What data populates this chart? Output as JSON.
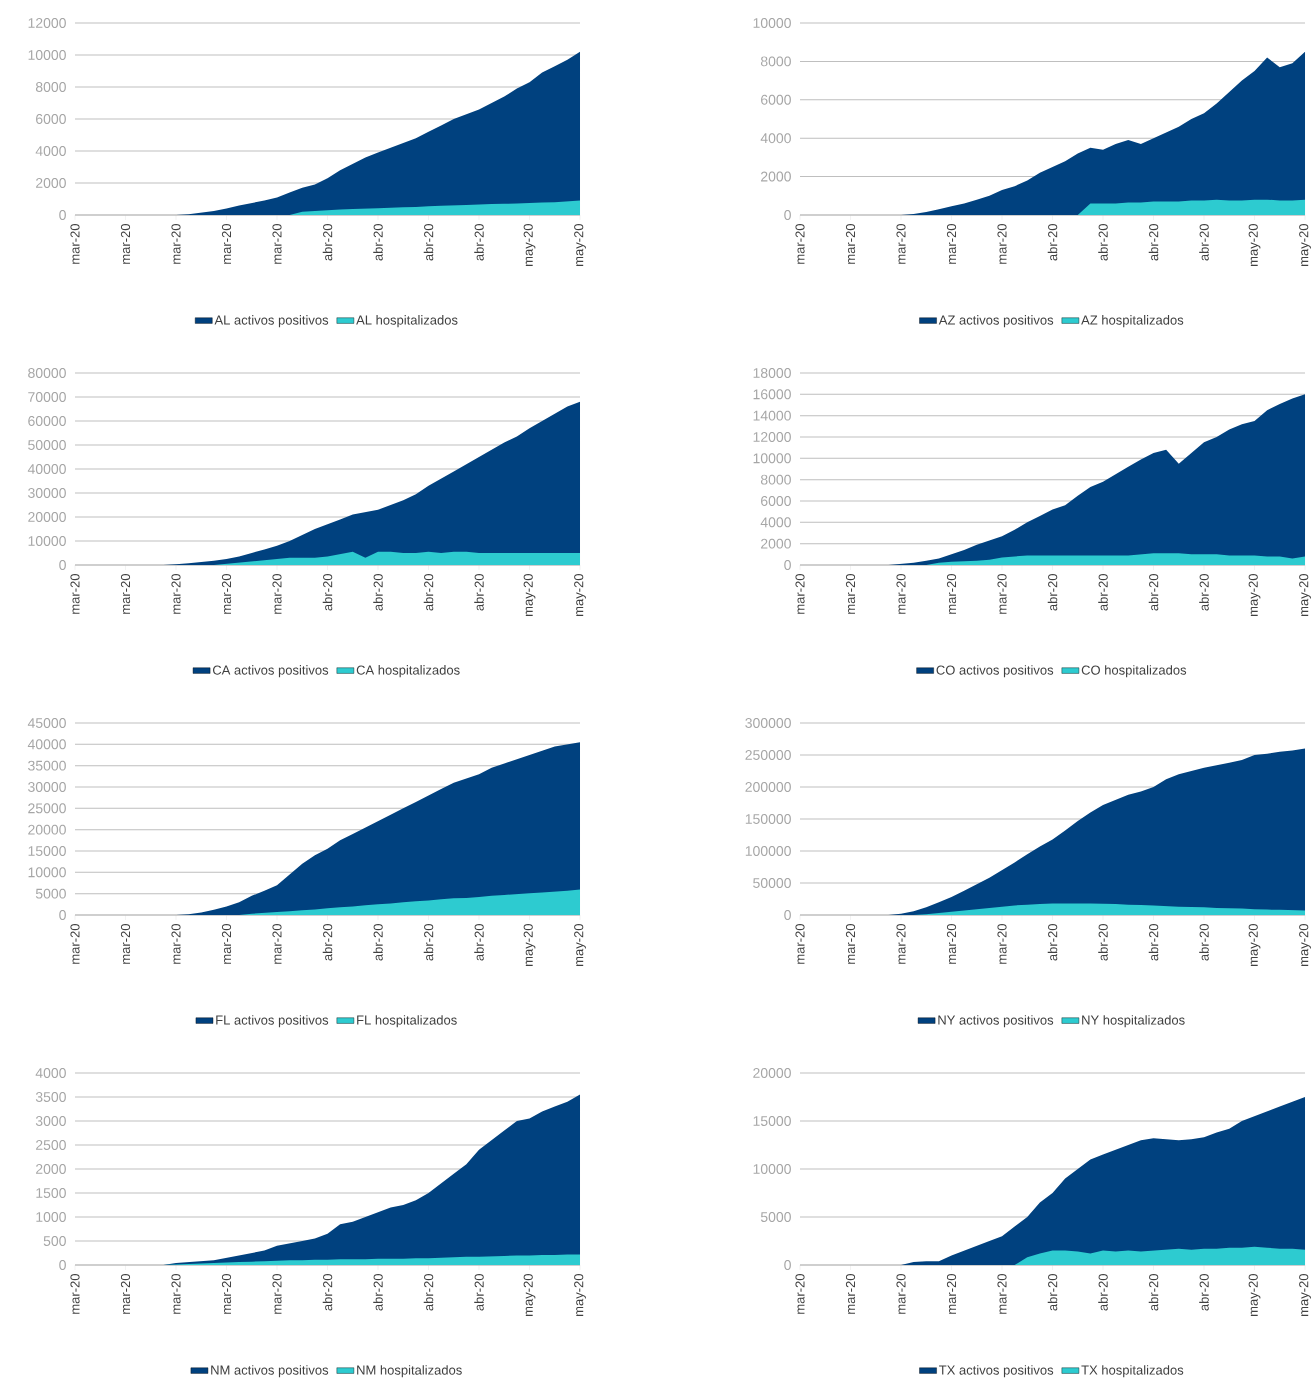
{
  "chart_data": [
    {
      "type": "area",
      "categories": [
        "mar-20",
        null,
        null,
        null,
        "mar-20",
        null,
        null,
        null,
        "mar-20",
        null,
        null,
        null,
        "mar-20",
        null,
        null,
        null,
        "mar-20",
        null,
        null,
        null,
        "abr-20",
        null,
        null,
        null,
        "abr-20",
        null,
        null,
        null,
        "abr-20",
        null,
        null,
        null,
        "abr-20",
        null,
        null,
        null,
        "may-20",
        null,
        null,
        null,
        "may-20"
      ],
      "ylim": [
        0,
        12000
      ],
      "yticks": [
        0,
        2000,
        4000,
        6000,
        8000,
        10000,
        12000
      ],
      "grid": "y",
      "legend": "bottom",
      "series": [
        {
          "name": "AL activos positivos",
          "color": "#00417f",
          "values": [
            0,
            0,
            0,
            0,
            0,
            0,
            0,
            0,
            0,
            50,
            150,
            250,
            400,
            600,
            750,
            900,
            1100,
            1400,
            1700,
            1900,
            2300,
            2800,
            3200,
            3600,
            3900,
            4200,
            4500,
            4800,
            5200,
            5600,
            6000,
            6300,
            6600,
            7000,
            7400,
            7900,
            8300,
            8900,
            9300,
            9700,
            10200
          ]
        },
        {
          "name": "AL hospitalizados",
          "color": "#2dcbd0",
          "values": [
            0,
            0,
            0,
            0,
            0,
            0,
            0,
            0,
            0,
            0,
            0,
            0,
            0,
            0,
            0,
            0,
            0,
            0,
            200,
            250,
            300,
            350,
            380,
            400,
            420,
            450,
            480,
            500,
            550,
            580,
            600,
            620,
            650,
            680,
            700,
            720,
            750,
            780,
            800,
            850,
            900
          ]
        }
      ]
    },
    {
      "type": "area",
      "categories": [
        "mar-20",
        null,
        null,
        null,
        "mar-20",
        null,
        null,
        null,
        "mar-20",
        null,
        null,
        null,
        "mar-20",
        null,
        null,
        null,
        "mar-20",
        null,
        null,
        null,
        "abr-20",
        null,
        null,
        null,
        "abr-20",
        null,
        null,
        null,
        "abr-20",
        null,
        null,
        null,
        "abr-20",
        null,
        null,
        null,
        "may-20",
        null,
        null,
        null,
        "may-20"
      ],
      "ylim": [
        0,
        10000
      ],
      "yticks": [
        0,
        2000,
        4000,
        6000,
        8000,
        10000
      ],
      "grid": "y",
      "legend": "bottom",
      "series": [
        {
          "name": "AZ activos positivos",
          "color": "#00417f",
          "values": [
            0,
            0,
            0,
            0,
            0,
            0,
            0,
            0,
            0,
            50,
            150,
            300,
            450,
            600,
            800,
            1000,
            1300,
            1500,
            1800,
            2200,
            2500,
            2800,
            3200,
            3500,
            3400,
            3700,
            3900,
            3700,
            4000,
            4300,
            4600,
            5000,
            5300,
            5800,
            6400,
            7000,
            7500,
            8200,
            7700,
            7900,
            8500
          ]
        },
        {
          "name": "AZ hospitalizados",
          "color": "#2dcbd0",
          "values": [
            0,
            0,
            0,
            0,
            0,
            0,
            0,
            0,
            0,
            0,
            0,
            0,
            0,
            0,
            0,
            0,
            0,
            0,
            0,
            0,
            0,
            0,
            0,
            600,
            600,
            600,
            650,
            650,
            700,
            700,
            700,
            750,
            750,
            800,
            750,
            750,
            800,
            800,
            750,
            750,
            800
          ]
        }
      ]
    },
    {
      "type": "area",
      "categories": [
        "mar-20",
        null,
        null,
        null,
        "mar-20",
        null,
        null,
        null,
        "mar-20",
        null,
        null,
        null,
        "mar-20",
        null,
        null,
        null,
        "mar-20",
        null,
        null,
        null,
        "abr-20",
        null,
        null,
        null,
        "abr-20",
        null,
        null,
        null,
        "abr-20",
        null,
        null,
        null,
        "abr-20",
        null,
        null,
        null,
        "may-20",
        null,
        null,
        null,
        "may-20"
      ],
      "ylim": [
        0,
        80000
      ],
      "yticks": [
        0,
        10000,
        20000,
        30000,
        40000,
        50000,
        60000,
        70000,
        80000
      ],
      "grid": "y",
      "legend": "bottom",
      "series": [
        {
          "name": "CA activos positivos",
          "color": "#00417f",
          "values": [
            0,
            0,
            0,
            0,
            0,
            0,
            0,
            0,
            300,
            700,
            1200,
            1800,
            2500,
            3500,
            5000,
            6500,
            8000,
            10000,
            12500,
            15000,
            17000,
            19000,
            21000,
            22000,
            23000,
            25000,
            27000,
            29500,
            33000,
            36000,
            39000,
            42000,
            45000,
            48000,
            51000,
            53500,
            57000,
            60000,
            63000,
            66000,
            68000
          ]
        },
        {
          "name": "CA hospitalizados",
          "color": "#2dcbd0",
          "values": [
            0,
            0,
            0,
            0,
            0,
            0,
            0,
            0,
            0,
            0,
            0,
            0,
            500,
            1000,
            1500,
            2000,
            2500,
            3000,
            3000,
            3000,
            3500,
            4500,
            5500,
            3000,
            5500,
            5500,
            5000,
            5000,
            5500,
            5000,
            5500,
            5500,
            5000,
            5000,
            5000,
            5000,
            5000,
            5000,
            5000,
            5000,
            5000
          ]
        }
      ]
    },
    {
      "type": "area",
      "categories": [
        "mar-20",
        null,
        null,
        null,
        "mar-20",
        null,
        null,
        null,
        "mar-20",
        null,
        null,
        null,
        "mar-20",
        null,
        null,
        null,
        "mar-20",
        null,
        null,
        null,
        "abr-20",
        null,
        null,
        null,
        "abr-20",
        null,
        null,
        null,
        "abr-20",
        null,
        null,
        null,
        "abr-20",
        null,
        null,
        null,
        "may-20",
        null,
        null,
        null,
        "may-20"
      ],
      "ylim": [
        0,
        18000
      ],
      "yticks": [
        0,
        2000,
        4000,
        6000,
        8000,
        10000,
        12000,
        14000,
        16000,
        18000
      ],
      "grid": "y",
      "legend": "bottom",
      "series": [
        {
          "name": "CO activos positivos",
          "color": "#00417f",
          "values": [
            0,
            0,
            0,
            0,
            0,
            0,
            0,
            0,
            100,
            200,
            400,
            600,
            1000,
            1400,
            1900,
            2300,
            2700,
            3300,
            4000,
            4600,
            5200,
            5600,
            6500,
            7300,
            7800,
            8500,
            9200,
            9900,
            10500,
            10800,
            9500,
            10500,
            11500,
            12000,
            12700,
            13200,
            13500,
            14500,
            15100,
            15600,
            16000
          ]
        },
        {
          "name": "CO hospitalizados",
          "color": "#2dcbd0",
          "values": [
            0,
            0,
            0,
            0,
            0,
            0,
            0,
            0,
            0,
            0,
            0,
            200,
            300,
            350,
            400,
            500,
            700,
            800,
            900,
            900,
            900,
            900,
            900,
            900,
            900,
            900,
            900,
            1000,
            1100,
            1100,
            1100,
            1000,
            1000,
            1000,
            900,
            900,
            900,
            800,
            800,
            600,
            800
          ]
        }
      ]
    },
    {
      "type": "area",
      "categories": [
        "mar-20",
        null,
        null,
        null,
        "mar-20",
        null,
        null,
        null,
        "mar-20",
        null,
        null,
        null,
        "mar-20",
        null,
        null,
        null,
        "mar-20",
        null,
        null,
        null,
        "abr-20",
        null,
        null,
        null,
        "abr-20",
        null,
        null,
        null,
        "abr-20",
        null,
        null,
        null,
        "abr-20",
        null,
        null,
        null,
        "may-20",
        null,
        null,
        null,
        "may-20"
      ],
      "ylim": [
        0,
        45000
      ],
      "yticks": [
        0,
        5000,
        10000,
        15000,
        20000,
        25000,
        30000,
        35000,
        40000,
        45000
      ],
      "grid": "y",
      "legend": "bottom",
      "series": [
        {
          "name": "FL activos positivos",
          "color": "#00417f",
          "values": [
            0,
            0,
            0,
            0,
            0,
            0,
            0,
            0,
            0,
            200,
            600,
            1200,
            2000,
            3000,
            4500,
            5700,
            7000,
            9500,
            12000,
            14000,
            15500,
            17500,
            19000,
            20500,
            22000,
            23500,
            25000,
            26500,
            28000,
            29500,
            31000,
            32000,
            33000,
            34500,
            35500,
            36500,
            37500,
            38500,
            39500,
            40000,
            40500
          ]
        },
        {
          "name": "FL hospitalizados",
          "color": "#2dcbd0",
          "values": [
            0,
            0,
            0,
            0,
            0,
            0,
            0,
            0,
            0,
            0,
            0,
            0,
            0,
            0,
            300,
            500,
            700,
            900,
            1100,
            1300,
            1600,
            1800,
            2000,
            2300,
            2500,
            2700,
            3000,
            3200,
            3400,
            3700,
            3900,
            4000,
            4200,
            4500,
            4700,
            4900,
            5100,
            5300,
            5500,
            5700,
            6000
          ]
        }
      ]
    },
    {
      "type": "area",
      "categories": [
        "mar-20",
        null,
        null,
        null,
        "mar-20",
        null,
        null,
        null,
        "mar-20",
        null,
        null,
        null,
        "mar-20",
        null,
        null,
        null,
        "mar-20",
        null,
        null,
        null,
        "abr-20",
        null,
        null,
        null,
        "abr-20",
        null,
        null,
        null,
        "abr-20",
        null,
        null,
        null,
        "abr-20",
        null,
        null,
        null,
        "may-20",
        null,
        null,
        null,
        "may-20"
      ],
      "ylim": [
        0,
        300000
      ],
      "yticks": [
        0,
        50000,
        100000,
        150000,
        200000,
        250000,
        300000
      ],
      "grid": "y",
      "legend": "bottom",
      "series": [
        {
          "name": "NY activos positivos",
          "color": "#00417f",
          "values": [
            0,
            0,
            0,
            0,
            0,
            0,
            0,
            0,
            2000,
            6000,
            12000,
            20000,
            28000,
            38000,
            48000,
            58000,
            70000,
            82000,
            95000,
            107000,
            118000,
            132000,
            147000,
            160000,
            172000,
            180000,
            188000,
            193000,
            200000,
            212000,
            220000,
            225000,
            230000,
            234000,
            238000,
            242000,
            250000,
            252000,
            255000,
            257000,
            260000
          ]
        },
        {
          "name": "NY hospitalizados",
          "color": "#2dcbd0",
          "values": [
            0,
            0,
            0,
            0,
            0,
            0,
            0,
            0,
            0,
            0,
            1000,
            3000,
            5000,
            7000,
            9000,
            11000,
            13000,
            15000,
            16000,
            17000,
            18000,
            18000,
            18000,
            18000,
            17500,
            17000,
            16000,
            15500,
            15000,
            14000,
            13000,
            12500,
            12000,
            11000,
            10500,
            10000,
            9000,
            8500,
            8000,
            7500,
            7000
          ]
        }
      ]
    },
    {
      "type": "area",
      "categories": [
        "mar-20",
        null,
        null,
        null,
        "mar-20",
        null,
        null,
        null,
        "mar-20",
        null,
        null,
        null,
        "mar-20",
        null,
        null,
        null,
        "mar-20",
        null,
        null,
        null,
        "abr-20",
        null,
        null,
        null,
        "abr-20",
        null,
        null,
        null,
        "abr-20",
        null,
        null,
        null,
        "abr-20",
        null,
        null,
        null,
        "may-20",
        null,
        null,
        null,
        "may-20"
      ],
      "ylim": [
        0,
        4000
      ],
      "yticks": [
        0,
        500,
        1000,
        1500,
        2000,
        2500,
        3000,
        3500,
        4000
      ],
      "grid": "y",
      "legend": "bottom",
      "series": [
        {
          "name": "NM activos positivos",
          "color": "#00417f",
          "values": [
            0,
            0,
            0,
            0,
            0,
            0,
            0,
            0,
            40,
            60,
            80,
            100,
            150,
            200,
            250,
            300,
            400,
            450,
            500,
            550,
            650,
            850,
            900,
            1000,
            1100,
            1200,
            1250,
            1350,
            1500,
            1700,
            1900,
            2100,
            2400,
            2600,
            2800,
            3000,
            3050,
            3200,
            3300,
            3400,
            3550
          ]
        },
        {
          "name": "NM hospitalizados",
          "color": "#2dcbd0",
          "values": [
            0,
            0,
            0,
            0,
            0,
            0,
            0,
            0,
            10,
            20,
            30,
            40,
            50,
            60,
            70,
            80,
            90,
            100,
            100,
            110,
            110,
            120,
            120,
            120,
            130,
            130,
            130,
            140,
            140,
            150,
            160,
            170,
            170,
            180,
            190,
            200,
            200,
            210,
            210,
            220,
            220
          ]
        }
      ]
    },
    {
      "type": "area",
      "categories": [
        "mar-20",
        null,
        null,
        null,
        "mar-20",
        null,
        null,
        null,
        "mar-20",
        null,
        null,
        null,
        "mar-20",
        null,
        null,
        null,
        "mar-20",
        null,
        null,
        null,
        "abr-20",
        null,
        null,
        null,
        "abr-20",
        null,
        null,
        null,
        "abr-20",
        null,
        null,
        null,
        "abr-20",
        null,
        null,
        null,
        "may-20",
        null,
        null,
        null,
        "may-20"
      ],
      "ylim": [
        0,
        20000
      ],
      "yticks": [
        0,
        5000,
        10000,
        15000,
        20000
      ],
      "grid": "y",
      "legend": "bottom",
      "series": [
        {
          "name": "TX activos positivos",
          "color": "#00417f",
          "values": [
            0,
            0,
            0,
            0,
            0,
            0,
            0,
            0,
            0,
            300,
            400,
            400,
            1000,
            1500,
            2000,
            2500,
            3000,
            4000,
            5000,
            6500,
            7500,
            9000,
            10000,
            11000,
            11500,
            12000,
            12500,
            13000,
            13200,
            13100,
            13000,
            13100,
            13300,
            13800,
            14200,
            15000,
            15500,
            16000,
            16500,
            17000,
            17500
          ]
        },
        {
          "name": "TX hospitalizados",
          "color": "#2dcbd0",
          "values": [
            0,
            0,
            0,
            0,
            0,
            0,
            0,
            0,
            0,
            0,
            0,
            0,
            0,
            0,
            0,
            0,
            0,
            0,
            800,
            1200,
            1500,
            1500,
            1400,
            1200,
            1500,
            1400,
            1500,
            1400,
            1500,
            1600,
            1700,
            1600,
            1700,
            1700,
            1800,
            1800,
            1900,
            1800,
            1700,
            1700,
            1600
          ]
        }
      ]
    }
  ]
}
